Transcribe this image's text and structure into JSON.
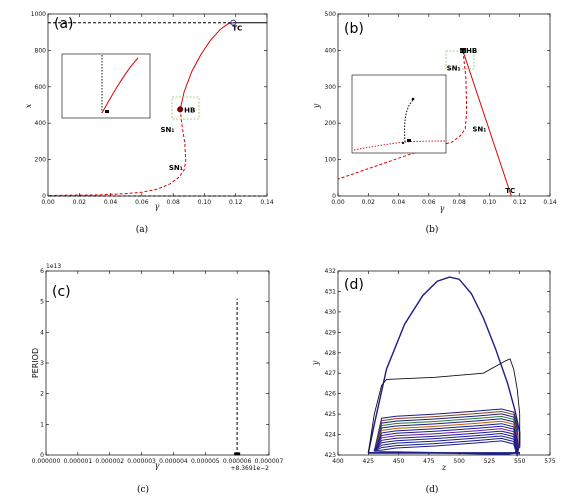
{
  "chart_data": [
    {
      "panel": "a",
      "type": "line",
      "panel_letter": "(a)",
      "caption": "(a)",
      "xlabel": "γ",
      "ylabel": "x",
      "xlim": [
        0.0,
        0.14
      ],
      "ylim": [
        0,
        1050
      ],
      "xticks": [
        "0.00",
        "0.02",
        "0.04",
        "0.06",
        "0.08",
        "0.10",
        "0.12",
        "0.14"
      ],
      "yticks": [
        "0",
        "200",
        "400",
        "600",
        "800",
        "1000"
      ],
      "series": [
        {
          "style": "solid-red",
          "x": [
            0.0845,
            0.087,
            0.092,
            0.098,
            0.104,
            0.11,
            0.115,
            0.1185
          ],
          "y": [
            500,
            600,
            720,
            820,
            900,
            960,
            993,
            1000
          ]
        },
        {
          "style": "dashed-red",
          "x": [
            0.0845,
            0.0855,
            0.0875,
            0.088,
            0.087,
            0.084,
            0.078,
            0.07,
            0.06,
            0.05,
            0.04,
            0.03,
            0.02,
            0.01,
            0.0
          ],
          "y": [
            500,
            420,
            300,
            200,
            150,
            110,
            70,
            40,
            22,
            14,
            9,
            6,
            5,
            4,
            3
          ]
        },
        {
          "style": "solid-black",
          "x": [
            0.1185,
            0.14
          ],
          "y": [
            1000,
            1000
          ]
        },
        {
          "style": "dashed-black",
          "x": [
            0.0,
            0.1185
          ],
          "y": [
            1000,
            1000
          ]
        },
        {
          "style": "dashed-black",
          "x": [
            0.0,
            0.14
          ],
          "y": [
            0,
            0
          ]
        }
      ],
      "annotations": [
        {
          "text": "TC",
          "x": 0.1185,
          "y": 1000
        },
        {
          "text": "HB",
          "x": 0.0845,
          "y": 500
        },
        {
          "text": "SN₁",
          "x": 0.0815,
          "y": 450
        },
        {
          "text": "SN₁",
          "x": 0.0875,
          "y": 150
        }
      ],
      "inset": true
    },
    {
      "panel": "b",
      "type": "line",
      "panel_letter": "(b)",
      "caption": "(b)",
      "xlabel": "γ",
      "ylabel": "y",
      "xlim": [
        0.0,
        0.145
      ],
      "ylim": [
        0,
        540
      ],
      "xticks": [
        "0.00",
        "0.02",
        "0.04",
        "0.06",
        "0.08",
        "0.10",
        "0.12",
        "0.14"
      ],
      "yticks": [
        "0",
        "100",
        "200",
        "300",
        "400",
        "500"
      ],
      "series": [
        {
          "style": "solid-red",
          "x": [
            0.0855,
            0.1185
          ],
          "y": [
            430,
            0
          ]
        },
        {
          "style": "dashed-red",
          "x": [
            0.0855,
            0.0875,
            0.088,
            0.087,
            0.084,
            0.078,
            0.07,
            0.06,
            0.05,
            0.04,
            0.03,
            0.02,
            0.01,
            0.0
          ],
          "y": [
            430,
            350,
            250,
            200,
            180,
            160,
            150,
            138,
            125,
            110,
            95,
            80,
            65,
            50
          ]
        }
      ],
      "annotations": [
        {
          "text": "HB",
          "x": 0.0855,
          "y": 430
        },
        {
          "text": "SN₁",
          "x": 0.0825,
          "y": 408
        },
        {
          "text": "SN₁",
          "x": 0.0885,
          "y": 200
        },
        {
          "text": "TC",
          "x": 0.1185,
          "y": 0
        }
      ],
      "inset": true
    },
    {
      "panel": "c",
      "type": "line",
      "panel_letter": "(c)",
      "caption": "(c)",
      "xlabel": "γ",
      "ylabel": "PERIOD",
      "y_offset_label": "1e13",
      "x_offset_label": "+8.3691e−2",
      "xlim": [
        0.0,
        7e-06
      ],
      "ylim": [
        0,
        6
      ],
      "xticks": [
        "0.000000",
        "0.000001",
        "0.000002",
        "0.000003",
        "0.000004",
        "0.000005",
        "0.000006",
        "0.000007"
      ],
      "yticks": [
        "0",
        "1",
        "2",
        "3",
        "4",
        "5",
        "6"
      ],
      "series": [
        {
          "style": "dashed-black",
          "x": [
            6e-06,
            6e-06
          ],
          "y": [
            0,
            5.1
          ]
        },
        {
          "style": "marker-black",
          "x": [
            6e-06
          ],
          "y": [
            0.02
          ]
        }
      ]
    },
    {
      "panel": "d",
      "type": "line",
      "panel_letter": "(d)",
      "caption": "(d)",
      "xlabel": "z",
      "ylabel": "y",
      "xlim": [
        400,
        575
      ],
      "ylim": [
        423,
        432
      ],
      "xticks": [
        "400",
        "425",
        "450",
        "475",
        "500",
        "525",
        "550",
        "575"
      ],
      "yticks": [
        "423",
        "424",
        "425",
        "426",
        "427",
        "428",
        "429",
        "430",
        "431",
        "432"
      ],
      "series": [
        {
          "name": "",
          "style": "navy-orbit",
          "x": [
            425,
            430,
            440,
            455,
            470,
            482,
            492,
            500,
            510,
            520,
            530,
            540,
            546,
            550,
            550,
            546,
            540,
            530,
            510,
            490,
            470,
            450,
            435,
            425
          ],
          "y": [
            423.1,
            424.5,
            427.2,
            429.4,
            430.8,
            431.5,
            431.7,
            431.6,
            430.9,
            429.7,
            428.2,
            426.5,
            425.2,
            424.1,
            423.4,
            423.1,
            423.05,
            423.05,
            423.07,
            423.1,
            423.12,
            423.14,
            423.15,
            423.1
          ]
        }
      ]
    }
  ]
}
